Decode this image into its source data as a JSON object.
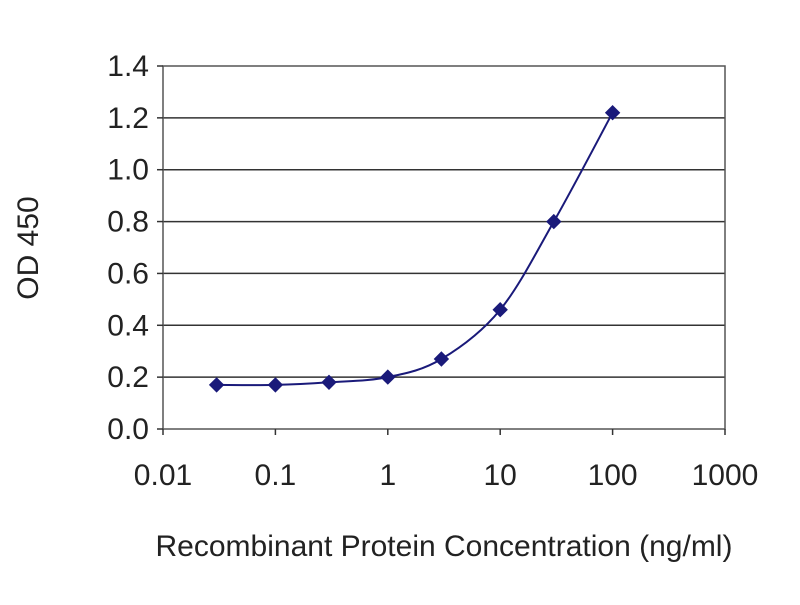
{
  "chart_data": {
    "type": "line",
    "title": "",
    "xlabel": "Recombinant Protein Concentration (ng/ml)",
    "ylabel": "OD 450",
    "x_scale": "log",
    "xlim": [
      0.01,
      1000
    ],
    "ylim": [
      0.0,
      1.4
    ],
    "x_ticks": [
      "0.01",
      "0.1",
      "1",
      "10",
      "100",
      "1000"
    ],
    "y_ticks": [
      "0.0",
      "0.2",
      "0.4",
      "0.6",
      "0.8",
      "1.0",
      "1.2",
      "1.4"
    ],
    "grid": "horizontal",
    "legend": "none",
    "series": [
      {
        "marker": "diamond",
        "color": "#1a1a7a",
        "x": [
          0.03,
          0.1,
          0.3,
          1,
          3,
          10,
          30,
          100
        ],
        "y": [
          0.17,
          0.17,
          0.18,
          0.2,
          0.27,
          0.46,
          0.8,
          1.22
        ]
      }
    ]
  }
}
